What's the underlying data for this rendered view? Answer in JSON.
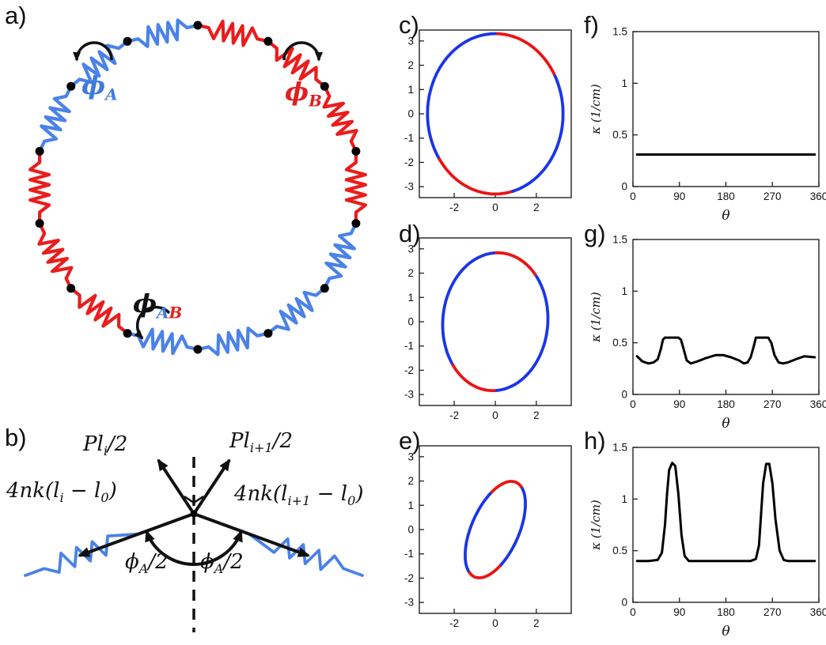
{
  "colors": {
    "spring_blue": "#4a82e8",
    "spring_red": "#ea1d1d",
    "plot_blue": "#1a35e8",
    "plot_red": "#ea1414",
    "line_black": "#111111"
  },
  "panels": {
    "a": "a)",
    "b": "b)",
    "c": "c)",
    "d": "d)",
    "e": "e)",
    "f": "f)",
    "g": "g)",
    "h": "h)"
  },
  "panel_a": {
    "ring_pattern": [
      "R",
      "R",
      "R",
      "R",
      "B",
      "B",
      "B",
      "B",
      "R",
      "R",
      "R",
      "B",
      "B",
      "B"
    ],
    "labels": {
      "phi_A": [
        {
          "t": "ϕ",
          "c": "#3f7ae0"
        },
        {
          "t": "A",
          "sub": true,
          "c": "#3f7ae0"
        }
      ],
      "phi_B": [
        {
          "t": "ϕ",
          "c": "#e02020"
        },
        {
          "t": "B",
          "sub": true,
          "c": "#e02020"
        }
      ],
      "phi_AB": [
        {
          "t": "ϕ",
          "c": "#111111"
        },
        {
          "t": "A",
          "sub": true,
          "c": "#3f7ae0"
        },
        {
          "t": "B",
          "sub": true,
          "c": "#e02020"
        }
      ]
    }
  },
  "panel_b": {
    "labels": {
      "tension_left": [
        {
          "t": "Pl"
        },
        {
          "t": "i",
          "sub": true
        },
        {
          "t": "/2"
        }
      ],
      "tension_right": [
        {
          "t": "Pl"
        },
        {
          "t": "i+1",
          "sub": true
        },
        {
          "t": "/2"
        }
      ],
      "spring_force_left": [
        {
          "t": "4nk(l"
        },
        {
          "t": "i",
          "sub": true
        },
        {
          "t": " − l"
        },
        {
          "t": "0",
          "sub": true
        },
        {
          "t": ")"
        }
      ],
      "spring_force_right": [
        {
          "t": "4nk(l"
        },
        {
          "t": "i+1",
          "sub": true
        },
        {
          "t": " − l"
        },
        {
          "t": "0",
          "sub": true
        },
        {
          "t": ")"
        }
      ],
      "half_angle_left": [
        {
          "t": "ϕ"
        },
        {
          "t": "A",
          "sub": true
        },
        {
          "t": "/2"
        }
      ],
      "half_angle_right": [
        {
          "t": "ϕ"
        },
        {
          "t": "A",
          "sub": true
        },
        {
          "t": "/2"
        }
      ]
    }
  },
  "chart_data": [
    {
      "id": "plot-c",
      "panel": "c",
      "type": "ring",
      "a": 3.3,
      "b": 3.3,
      "rot_deg": 0,
      "red_arcs": [
        [
          30,
          90
        ],
        [
          215,
          285
        ]
      ],
      "xlim": [
        -3.7,
        3.7
      ],
      "ylim": [
        -3.45,
        3.45
      ],
      "xticks": [
        -2,
        0,
        2
      ],
      "yticks": [
        3,
        2,
        1,
        0,
        -1,
        -2,
        -3
      ]
    },
    {
      "id": "plot-d",
      "panel": "d",
      "type": "ring",
      "a": 2.55,
      "b": 2.85,
      "rot_deg": -12,
      "red_arcs": [
        [
          45,
          92
        ],
        [
          220,
          272
        ]
      ],
      "xlim": [
        -3.7,
        3.7
      ],
      "ylim": [
        -3.45,
        3.45
      ],
      "xticks": [
        -2,
        0,
        2
      ],
      "yticks": [
        3,
        2,
        1,
        0,
        -1,
        -2,
        -3
      ]
    },
    {
      "id": "plot-e",
      "panel": "e",
      "type": "ring",
      "a": 1.12,
      "b": 2.2,
      "rot_deg": -30,
      "red_arcs": [
        [
          55,
          100
        ],
        [
          235,
          282
        ]
      ],
      "xlim": [
        -3.7,
        3.7
      ],
      "ylim": [
        -3.45,
        3.45
      ],
      "xticks": [
        -2,
        0,
        2
      ],
      "yticks": [
        3,
        2,
        1,
        0,
        -1,
        -2,
        -3
      ]
    },
    {
      "id": "plot-f",
      "panel": "f",
      "type": "line",
      "x": [
        8,
        352
      ],
      "y": [
        0.31,
        0.31
      ],
      "xlim": [
        0,
        360
      ],
      "ylim": [
        0,
        1.5
      ],
      "xticks": [
        0,
        90,
        180,
        270,
        360
      ],
      "yticks": [
        0,
        0.5,
        1,
        1.5
      ],
      "xlabel": "θ",
      "ylabel": "κ (1/cm)"
    },
    {
      "id": "plot-g",
      "panel": "g",
      "type": "line",
      "x": [
        8,
        18,
        30,
        40,
        48,
        54,
        58,
        62,
        88,
        93,
        98,
        104,
        112,
        125,
        140,
        160,
        175,
        190,
        205,
        215,
        222,
        228,
        234,
        238,
        262,
        268,
        274,
        282,
        290,
        300,
        315,
        332,
        352
      ],
      "y": [
        0.37,
        0.32,
        0.3,
        0.31,
        0.34,
        0.44,
        0.53,
        0.55,
        0.55,
        0.53,
        0.44,
        0.33,
        0.3,
        0.32,
        0.35,
        0.38,
        0.38,
        0.36,
        0.33,
        0.3,
        0.31,
        0.36,
        0.47,
        0.55,
        0.55,
        0.5,
        0.38,
        0.31,
        0.3,
        0.31,
        0.34,
        0.37,
        0.36
      ],
      "xlim": [
        0,
        360
      ],
      "ylim": [
        0,
        1.5
      ],
      "xticks": [
        0,
        90,
        180,
        270,
        360
      ],
      "yticks": [
        0,
        0.5,
        1,
        1.5
      ],
      "xlabel": "θ",
      "ylabel": "κ (1/cm)"
    },
    {
      "id": "plot-h",
      "panel": "h",
      "type": "line",
      "x": [
        8,
        30,
        48,
        56,
        62,
        66,
        70,
        76,
        82,
        88,
        94,
        100,
        108,
        120,
        150,
        180,
        210,
        228,
        238,
        244,
        248,
        252,
        258,
        264,
        270,
        276,
        284,
        292,
        300,
        315,
        335,
        352
      ],
      "y": [
        0.4,
        0.4,
        0.41,
        0.48,
        0.75,
        1.05,
        1.28,
        1.35,
        1.32,
        1.05,
        0.65,
        0.45,
        0.4,
        0.4,
        0.4,
        0.4,
        0.4,
        0.4,
        0.42,
        0.55,
        0.85,
        1.15,
        1.34,
        1.34,
        1.15,
        0.8,
        0.5,
        0.41,
        0.4,
        0.4,
        0.4,
        0.4
      ],
      "xlim": [
        0,
        360
      ],
      "ylim": [
        0,
        1.5
      ],
      "xticks": [
        0,
        90,
        180,
        270,
        360
      ],
      "yticks": [
        0,
        0.5,
        1,
        1.5
      ],
      "xlabel": "θ",
      "ylabel": "κ (1/cm)"
    }
  ]
}
